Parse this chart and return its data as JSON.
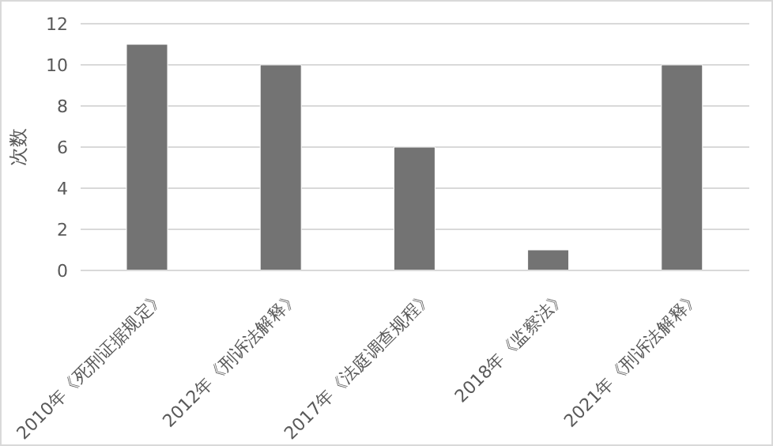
{
  "chart_data": {
    "type": "bar",
    "ylabel": "次数",
    "categories": [
      "2010年《死刑证据规定》",
      "2012年《刑诉法解释》",
      "2017年《法庭调查规程》",
      "2018年《监察法》",
      "2021年《刑诉法解释》"
    ],
    "values": [
      11,
      10,
      6,
      1,
      10
    ],
    "color": "#737373",
    "ylim": [
      0,
      12
    ],
    "yticks": [
      0,
      2,
      4,
      6,
      8,
      10,
      12
    ],
    "grid": "y"
  }
}
